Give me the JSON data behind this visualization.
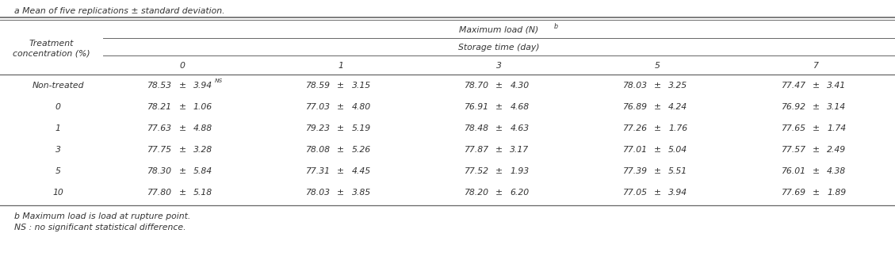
{
  "footnote_a": "a Mean of five replications ± standard deviation.",
  "footnote_b": "b Maximum load is load at rupture point.",
  "footnote_ns": "NS : no significant statistical difference.",
  "header1": "Maximum load (N)",
  "header1_sup": "b",
  "header2": "Storage time (day)",
  "col_headers": [
    "0",
    "1",
    "3",
    "5",
    "7"
  ],
  "row_header_line1": "Treatment",
  "row_header_line2": "concentration (%)",
  "rows": [
    {
      "label": "Non-treated",
      "values": [
        {
          "mean": "78.53",
          "sd": "3.94",
          "sup": "NS"
        },
        {
          "mean": "78.59",
          "sd": "3.15",
          "sup": ""
        },
        {
          "mean": "78.70",
          "sd": "4.30",
          "sup": ""
        },
        {
          "mean": "78.03",
          "sd": "3.25",
          "sup": ""
        },
        {
          "mean": "77.47",
          "sd": "3.41",
          "sup": ""
        }
      ]
    },
    {
      "label": "0",
      "values": [
        {
          "mean": "78.21",
          "sd": "1.06",
          "sup": ""
        },
        {
          "mean": "77.03",
          "sd": "4.80",
          "sup": ""
        },
        {
          "mean": "76.91",
          "sd": "4.68",
          "sup": ""
        },
        {
          "mean": "76.89",
          "sd": "4.24",
          "sup": ""
        },
        {
          "mean": "76.92",
          "sd": "3.14",
          "sup": ""
        }
      ]
    },
    {
      "label": "1",
      "values": [
        {
          "mean": "77.63",
          "sd": "4.88",
          "sup": ""
        },
        {
          "mean": "79.23",
          "sd": "5.19",
          "sup": ""
        },
        {
          "mean": "78.48",
          "sd": "4.63",
          "sup": ""
        },
        {
          "mean": "77.26",
          "sd": "1.76",
          "sup": ""
        },
        {
          "mean": "77.65",
          "sd": "1.74",
          "sup": ""
        }
      ]
    },
    {
      "label": "3",
      "values": [
        {
          "mean": "77.75",
          "sd": "3.28",
          "sup": ""
        },
        {
          "mean": "78.08",
          "sd": "5.26",
          "sup": ""
        },
        {
          "mean": "77.87",
          "sd": "3.17",
          "sup": ""
        },
        {
          "mean": "77.01",
          "sd": "5.04",
          "sup": ""
        },
        {
          "mean": "77.57",
          "sd": "2.49",
          "sup": ""
        }
      ]
    },
    {
      "label": "5",
      "values": [
        {
          "mean": "78.30",
          "sd": "5.84",
          "sup": ""
        },
        {
          "mean": "77.31",
          "sd": "4.45",
          "sup": ""
        },
        {
          "mean": "77.52",
          "sd": "1.93",
          "sup": ""
        },
        {
          "mean": "77.39",
          "sd": "5.51",
          "sup": ""
        },
        {
          "mean": "76.01",
          "sd": "4.38",
          "sup": ""
        }
      ]
    },
    {
      "label": "10",
      "values": [
        {
          "mean": "77.80",
          "sd": "5.18",
          "sup": ""
        },
        {
          "mean": "78.03",
          "sd": "3.85",
          "sup": ""
        },
        {
          "mean": "78.20",
          "sd": "6.20",
          "sup": ""
        },
        {
          "mean": "77.05",
          "sd": "3.94",
          "sup": ""
        },
        {
          "mean": "77.69",
          "sd": "1.89",
          "sup": ""
        }
      ]
    }
  ],
  "font_size": 7.8,
  "text_color": "#333333",
  "bg_color": "#ffffff",
  "line_color": "#666666"
}
